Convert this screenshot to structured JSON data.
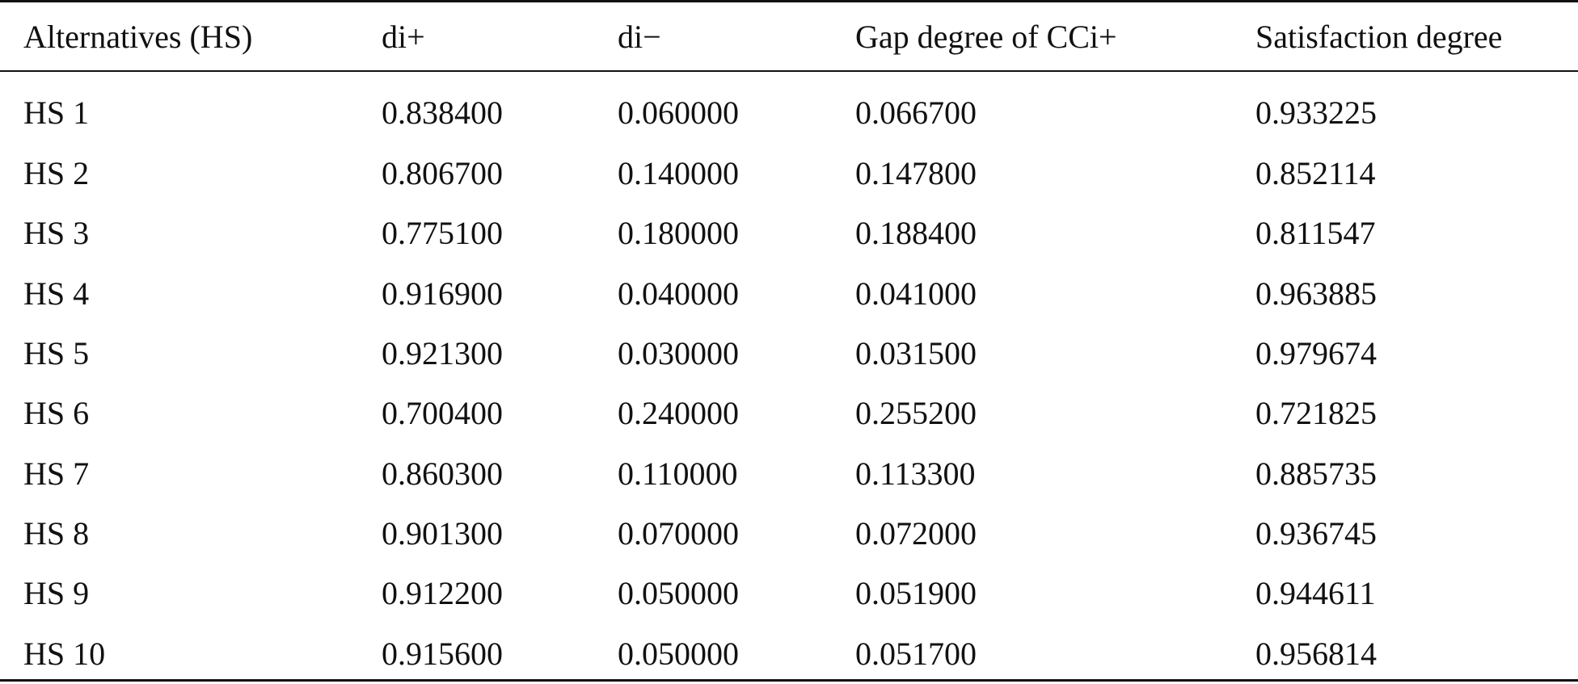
{
  "table": {
    "columns": [
      "Alternatives (HS)",
      "di+",
      "di−",
      "Gap degree of CCi+",
      "Satisfaction degree"
    ],
    "rows": [
      [
        "HS 1",
        "0.838400",
        "0.060000",
        "0.066700",
        "0.933225"
      ],
      [
        "HS 2",
        "0.806700",
        "0.140000",
        "0.147800",
        "0.852114"
      ],
      [
        "HS 3",
        "0.775100",
        "0.180000",
        "0.188400",
        "0.811547"
      ],
      [
        "HS 4",
        "0.916900",
        "0.040000",
        "0.041000",
        "0.963885"
      ],
      [
        "HS 5",
        "0.921300",
        "0.030000",
        "0.031500",
        "0.979674"
      ],
      [
        "HS 6",
        "0.700400",
        "0.240000",
        "0.255200",
        "0.721825"
      ],
      [
        "HS 7",
        "0.860300",
        "0.110000",
        "0.113300",
        "0.885735"
      ],
      [
        "HS 8",
        "0.901300",
        "0.070000",
        "0.072000",
        "0.936745"
      ],
      [
        "HS 9",
        "0.912200",
        "0.050000",
        "0.051900",
        "0.944611"
      ],
      [
        "HS 10",
        "0.915600",
        "0.050000",
        "0.051700",
        "0.956814"
      ]
    ]
  }
}
